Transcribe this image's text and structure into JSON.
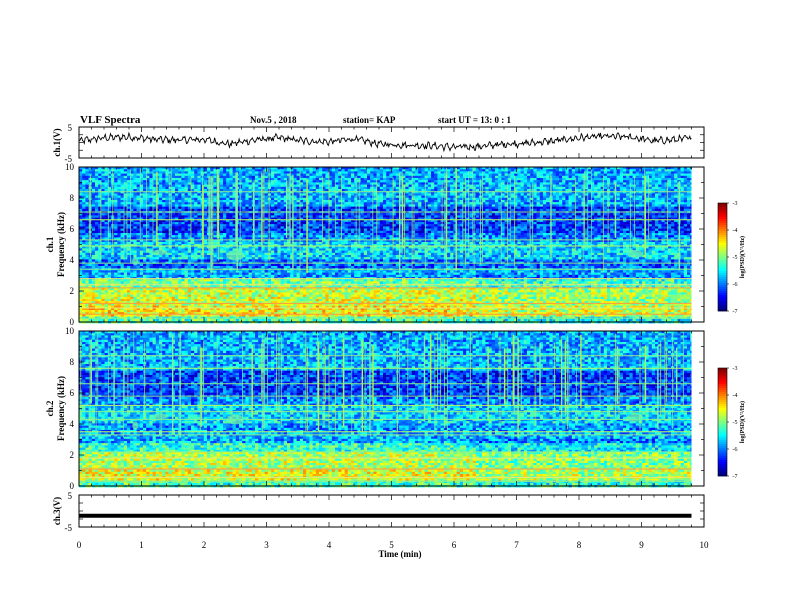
{
  "header": {
    "title": "VLF Spectra",
    "date": "Nov.5  , 2018",
    "station": "station= KAP",
    "start": "start  UT =   13: 0  : 1"
  },
  "chart_data": [
    {
      "type": "line",
      "panel": "ch1-voltage",
      "ylabel": "ch.1(V)",
      "yticks": [
        "5",
        "-5"
      ],
      "ylim": [
        -5,
        5
      ],
      "xlim": [
        0,
        10
      ],
      "x_end": 9.8,
      "series": [
        {
          "x": [
            0,
            0.4,
            0.8,
            1.2,
            1.6,
            2.0,
            2.4,
            2.8,
            3.2,
            3.6,
            4.0,
            4.4,
            4.8,
            5.2,
            5.6,
            6.0,
            6.4,
            6.8,
            7.2,
            7.6,
            8.0,
            8.4,
            8.8,
            9.2,
            9.6,
            9.8
          ],
          "values": [
            0.5,
            1.5,
            1.8,
            1.0,
            0.8,
            1.0,
            -0.5,
            0.8,
            1.5,
            0.5,
            0.2,
            1.2,
            -0.5,
            -0.8,
            -1.0,
            -1.5,
            -1.3,
            -0.5,
            -0.2,
            0.5,
            1.5,
            2.0,
            1.8,
            0.5,
            1.0,
            1.5
          ]
        }
      ]
    },
    {
      "type": "heatmap",
      "panel": "ch1-spectrogram",
      "ylabel": "ch.1\nFrequency  (kHz)",
      "yticks": [
        "0",
        "2",
        "4",
        "6",
        "8",
        "10"
      ],
      "ylim": [
        0,
        10
      ],
      "xlim": [
        0,
        10
      ],
      "x_end": 9.8,
      "step_time": 6.3,
      "colorbar": {
        "label": "log(PSD)(V²/Hz)",
        "range": [
          -7,
          -3
        ],
        "ticks": [
          "-3",
          "-4",
          "-5",
          "-6",
          "-7"
        ]
      }
    },
    {
      "type": "heatmap",
      "panel": "ch2-spectrogram",
      "ylabel": "ch.2\nFrequency  (kHz)",
      "yticks": [
        "0",
        "2",
        "4",
        "6",
        "8",
        "10"
      ],
      "ylim": [
        0,
        10
      ],
      "xlim": [
        0,
        10
      ],
      "x_end": 9.8,
      "step_time": 6.3,
      "colorbar": {
        "label": "log(PSD)(V²/Hz)",
        "range": [
          -7,
          -3
        ],
        "ticks": [
          "-3",
          "-4",
          "-5",
          "-6",
          "-7"
        ]
      }
    },
    {
      "type": "line",
      "panel": "ch3-voltage",
      "ylabel": "ch.3(V)",
      "yticks": [
        "5",
        "-5"
      ],
      "ylim": [
        -5,
        5
      ],
      "xlim": [
        0,
        10
      ],
      "x_end": 9.8,
      "series": [
        {
          "x": [
            0,
            9.8
          ],
          "values": [
            -1.5,
            -1.5
          ]
        }
      ]
    }
  ],
  "xaxis": {
    "label": "Time  (min)",
    "ticks": [
      "0",
      "1",
      "2",
      "3",
      "4",
      "5",
      "6",
      "7",
      "8",
      "9",
      "10"
    ]
  }
}
